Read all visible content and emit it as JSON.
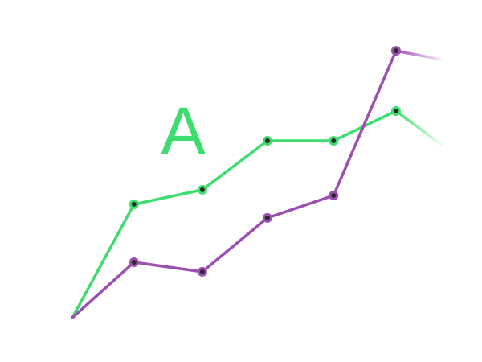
{
  "chart_data": {
    "type": "line",
    "label": "A",
    "x": [
      0,
      16.7,
      35.2,
      52.8,
      70.7,
      87.6,
      100
    ],
    "xlim": [
      0,
      100
    ],
    "ylim": [
      0,
      100
    ],
    "series": [
      {
        "color": "#3ddc6e",
        "values": [
          0,
          41.5,
          46.8,
          64.7,
          64.7,
          75.6,
          63.2
        ]
      },
      {
        "color": "#9b4fb0",
        "values": [
          0,
          20.3,
          16.8,
          36.5,
          44.7,
          97.6,
          94.4
        ]
      }
    ]
  }
}
